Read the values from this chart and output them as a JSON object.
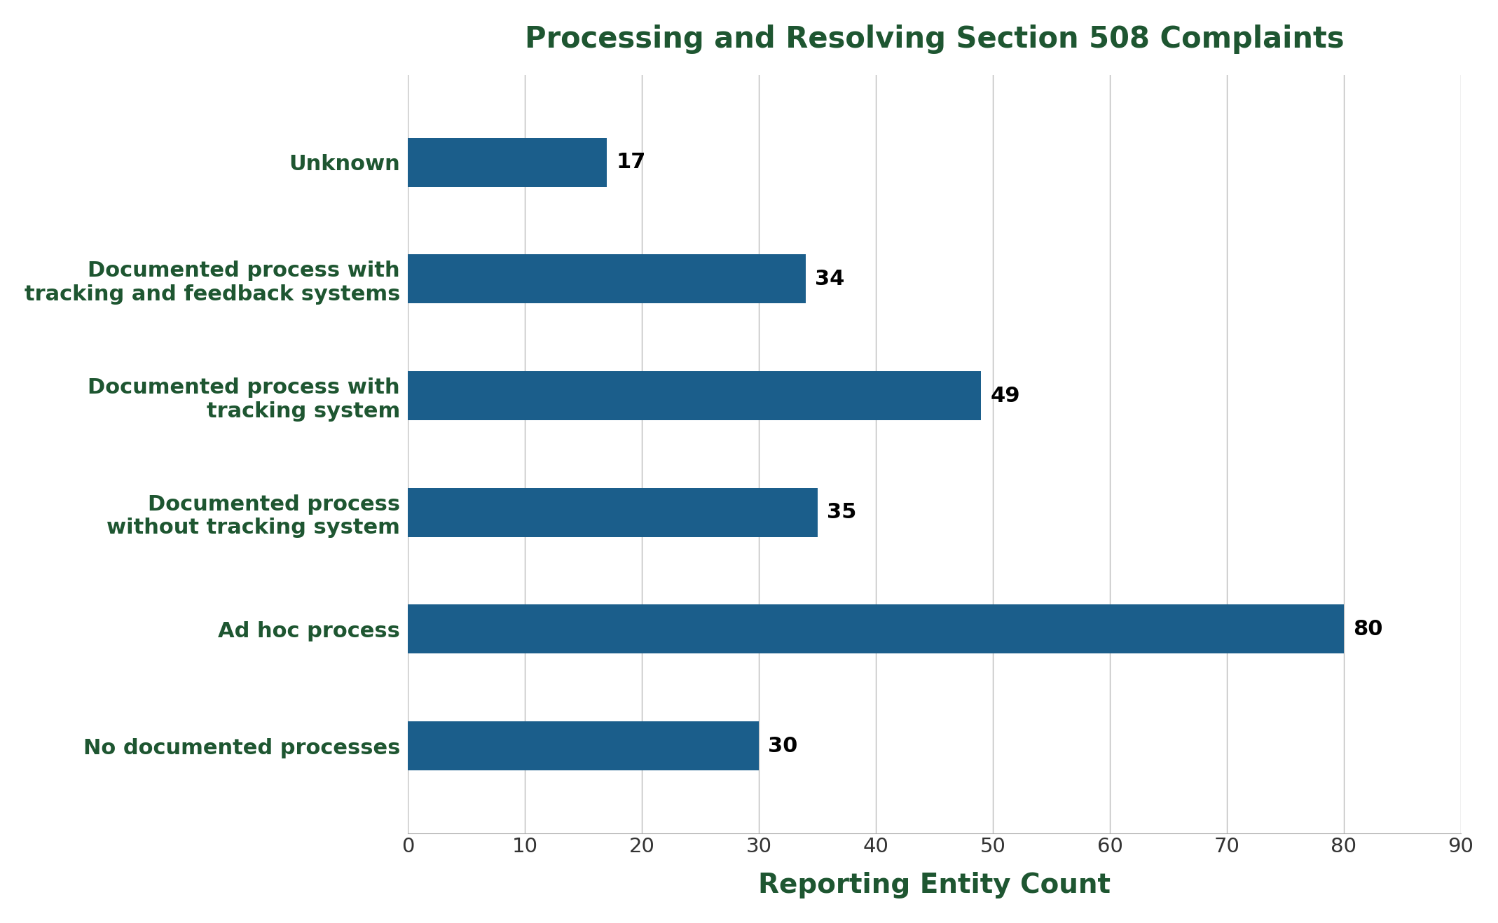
{
  "title": "Processing and Resolving Section 508 Complaints",
  "categories": [
    "No documented processes",
    "Ad hoc process",
    "Documented process\nwithout tracking system",
    "Documented process with\ntracking system",
    "Documented process with\ntracking and feedback systems",
    "Unknown"
  ],
  "values": [
    30,
    80,
    35,
    49,
    34,
    17
  ],
  "bar_color": "#1B5E8B",
  "title_color": "#1E5631",
  "axis_label_color": "#1E5631",
  "ytick_label_color": "#1E5631",
  "xtick_label_color": "#333333",
  "xlabel": "Reporting Entity Count",
  "xlim": [
    0,
    90
  ],
  "xticks": [
    0,
    10,
    20,
    30,
    40,
    50,
    60,
    70,
    80,
    90
  ],
  "bar_height": 0.42,
  "title_fontsize": 30,
  "xlabel_fontsize": 28,
  "xtick_fontsize": 21,
  "value_label_fontsize": 22,
  "ytick_fontsize": 22,
  "background_color": "#ffffff",
  "grid_color": "#bbbbbb"
}
